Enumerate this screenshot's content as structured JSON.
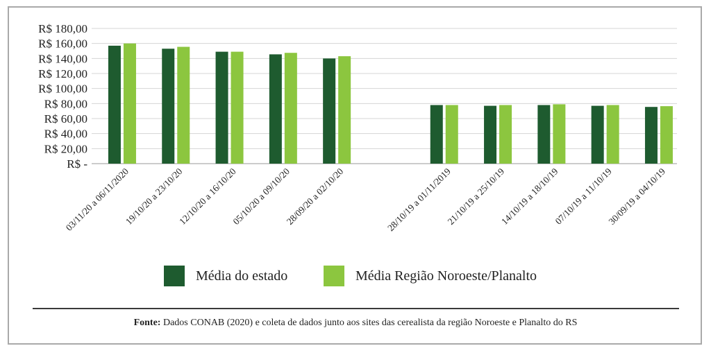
{
  "chart_data": {
    "type": "bar",
    "categories": [
      "03/11/20 a 06/11/2020",
      "19/10/20 a 23/10/20",
      "12/10/20 a 16/10/20",
      "05/10/20 a 09/10/20",
      "28/09/20 a 02/10/20",
      "",
      "28/10/19 a 01/11/2019",
      "21/10/19 a 25/10/19",
      "14/10/19 a 18/10/19",
      "07/10/19 a 11/10/19",
      "30/09/19 a 04/10/19"
    ],
    "series": [
      {
        "name": "Média do estado",
        "values": [
          157,
          153,
          149,
          145.5,
          140,
          null,
          78,
          77,
          78,
          77,
          75.5
        ]
      },
      {
        "name": "Média Região Noroeste/Planalto",
        "values": [
          160,
          155.5,
          149,
          147.5,
          143,
          null,
          78,
          78,
          79,
          78,
          76.5
        ]
      }
    ],
    "ylim": [
      0,
      180
    ],
    "yticks": [
      "R$ -",
      "R$ 20,00",
      "R$ 40,00",
      "R$ 60,00",
      "R$ 80,00",
      "R$ 100,00",
      "R$ 120,00",
      "R$ 140,00",
      "R$ 160,00",
      "R$ 180,00"
    ],
    "grid": true,
    "legend_position": "bottom",
    "colors": [
      "#1e5b2f",
      "#8cc63f"
    ]
  },
  "source": {
    "label": "Fonte:",
    "text": " Dados CONAB (2020) e coleta de dados junto aos sites das cerealista da região Noroeste e Planalto do RS"
  }
}
